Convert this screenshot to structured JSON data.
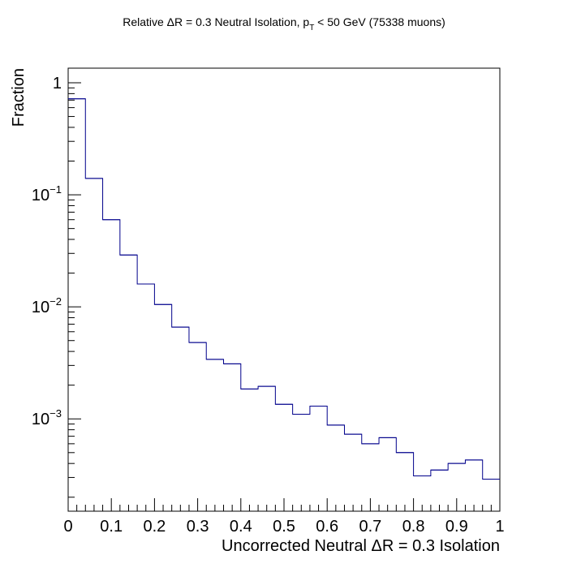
{
  "chart_data": {
    "type": "histogram",
    "title": {
      "prefix": "Relative ",
      "delta": "Δ",
      "middle": "R = 0.3 Neutral Isolation, p",
      "subscript": "T",
      "suffix": " < 50 GeV (75338 muons)"
    },
    "xlabel": {
      "prefix": "Uncorrected Neutral ",
      "delta": "Δ",
      "suffix": "R = 0.3 Isolation"
    },
    "ylabel": "Fraction",
    "xlim": [
      0,
      1
    ],
    "ylim": [
      0.00015,
      1.35
    ],
    "yscale": "log",
    "grid": false,
    "line_color": "#00008b",
    "bin_edges": [
      0,
      0.04,
      0.08,
      0.12,
      0.16,
      0.2,
      0.24,
      0.28,
      0.32,
      0.36,
      0.4,
      0.44,
      0.48,
      0.52,
      0.56,
      0.6,
      0.64,
      0.68,
      0.72,
      0.76,
      0.8,
      0.84,
      0.88,
      0.92,
      0.96,
      1.0
    ],
    "values": [
      0.72,
      0.14,
      0.06,
      0.029,
      0.016,
      0.0105,
      0.0066,
      0.0048,
      0.0034,
      0.0031,
      0.00185,
      0.00195,
      0.00135,
      0.0011,
      0.0013,
      0.00088,
      0.00073,
      0.0006,
      0.00068,
      0.0005,
      0.00031,
      0.00035,
      0.0004,
      0.00043,
      0.00029
    ],
    "x_ticks": [
      "0",
      "0.1",
      "0.2",
      "0.3",
      "0.4",
      "0.5",
      "0.6",
      "0.7",
      "0.8",
      "0.9",
      "1"
    ],
    "y_ticks": [
      {
        "value": 1,
        "base": "1",
        "exp": ""
      },
      {
        "value": 0.1,
        "base": "10",
        "exp": "−1"
      },
      {
        "value": 0.01,
        "base": "10",
        "exp": "−2"
      },
      {
        "value": 0.001,
        "base": "10",
        "exp": "−3"
      }
    ]
  }
}
